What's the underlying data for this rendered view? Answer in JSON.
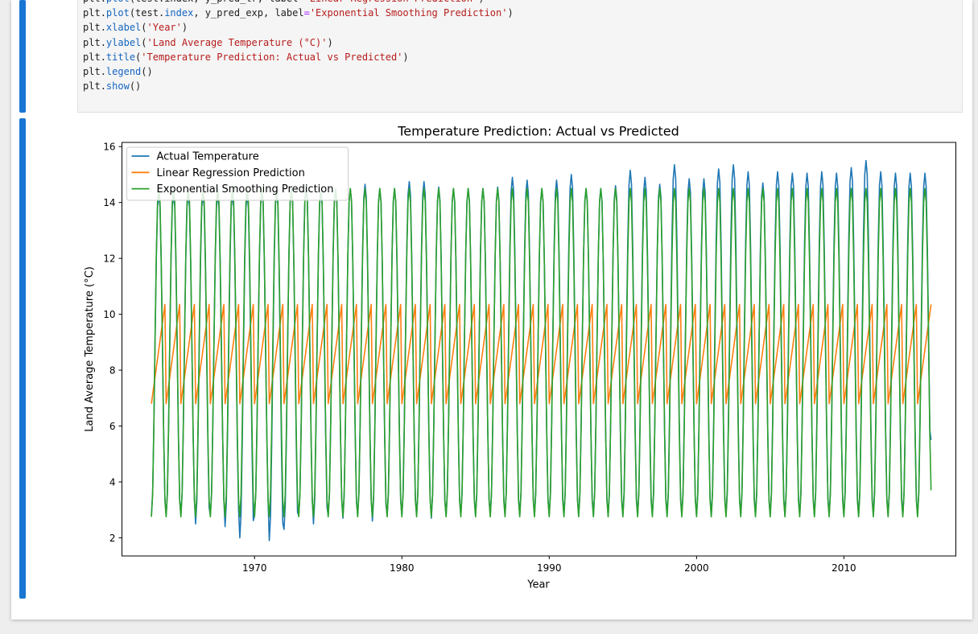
{
  "code_cell": {
    "lines": [
      [
        {
          "t": "plt",
          "c": ""
        },
        {
          "t": ".",
          "c": ""
        },
        {
          "t": "plot",
          "c": "fn"
        },
        {
          "t": "(test.index, y_pred_lr, label",
          "c": ""
        },
        {
          "t": "=",
          "c": "op"
        },
        {
          "t": "'Linear Regression Prediction'",
          "c": "str"
        },
        {
          "t": ")",
          "c": ""
        }
      ],
      [
        {
          "t": "plt",
          "c": ""
        },
        {
          "t": ".",
          "c": ""
        },
        {
          "t": "plot",
          "c": "fn"
        },
        {
          "t": "(test.",
          "c": ""
        },
        {
          "t": "index",
          "c": "fn"
        },
        {
          "t": ", y_pred_exp, label",
          "c": ""
        },
        {
          "t": "=",
          "c": "op"
        },
        {
          "t": "'Exponential Smoothing Prediction'",
          "c": "str"
        },
        {
          "t": ")",
          "c": ""
        }
      ],
      [
        {
          "t": "plt",
          "c": ""
        },
        {
          "t": ".",
          "c": ""
        },
        {
          "t": "xlabel",
          "c": "fn"
        },
        {
          "t": "(",
          "c": ""
        },
        {
          "t": "'Year'",
          "c": "str"
        },
        {
          "t": ")",
          "c": ""
        }
      ],
      [
        {
          "t": "plt",
          "c": ""
        },
        {
          "t": ".",
          "c": ""
        },
        {
          "t": "ylabel",
          "c": "fn"
        },
        {
          "t": "(",
          "c": ""
        },
        {
          "t": "'Land Average Temperature (°C)'",
          "c": "str"
        },
        {
          "t": ")",
          "c": ""
        }
      ],
      [
        {
          "t": "plt",
          "c": ""
        },
        {
          "t": ".",
          "c": ""
        },
        {
          "t": "title",
          "c": "fn"
        },
        {
          "t": "(",
          "c": ""
        },
        {
          "t": "'Temperature Prediction: Actual vs Predicted'",
          "c": "str"
        },
        {
          "t": ")",
          "c": ""
        }
      ],
      [
        {
          "t": "plt",
          "c": ""
        },
        {
          "t": ".",
          "c": ""
        },
        {
          "t": "legend",
          "c": "fn"
        },
        {
          "t": "()",
          "c": ""
        }
      ],
      [
        {
          "t": "plt",
          "c": ""
        },
        {
          "t": ".",
          "c": ""
        },
        {
          "t": "show",
          "c": "fn"
        },
        {
          "t": "()",
          "c": ""
        }
      ]
    ]
  },
  "chart_data": {
    "type": "line",
    "title": "Temperature Prediction: Actual vs Predicted",
    "xlabel": "Year",
    "ylabel": "Land Average Temperature (°C)",
    "xlim": [
      1961.0,
      2017.6
    ],
    "ylim": [
      1.35,
      16.15
    ],
    "xticks": [
      1970,
      1980,
      1990,
      2000,
      2010
    ],
    "yticks": [
      2,
      4,
      6,
      8,
      10,
      12,
      14,
      16
    ],
    "legend": "upper left",
    "grid": false,
    "x_range": [
      1963,
      2015.917
    ],
    "series": [
      {
        "name": "Actual Temperature",
        "color": "#1f77b4",
        "frequency": "monthly",
        "annual_peaks": [
          14.3,
          14.3,
          14.3,
          14.3,
          14.3,
          14.3,
          14.3,
          14.4,
          14.4,
          14.5,
          14.6,
          14.4,
          14.5,
          14.5,
          14.65,
          14.5,
          14.5,
          14.75,
          14.75,
          14.55,
          14.5,
          14.5,
          14.5,
          14.55,
          14.9,
          14.8,
          14.5,
          14.8,
          15.0,
          14.5,
          14.5,
          14.6,
          15.15,
          14.9,
          14.65,
          15.35,
          14.85,
          14.85,
          15.2,
          15.35,
          15.1,
          14.7,
          15.1,
          15.05,
          15.05,
          15.1,
          15.05,
          15.25,
          15.5,
          15.1,
          15.05,
          15.05,
          15.05
        ],
        "annual_troughs": [
          2.8,
          2.8,
          2.8,
          2.5,
          2.8,
          2.4,
          2.0,
          2.8,
          1.9,
          2.3,
          2.8,
          2.5,
          2.8,
          2.7,
          2.8,
          2.6,
          2.8,
          2.8,
          2.8,
          2.7,
          2.8,
          2.8,
          2.8,
          2.8,
          2.8,
          2.8,
          2.8,
          2.8,
          2.8,
          2.8,
          2.8,
          2.8,
          2.8,
          2.8,
          2.8,
          2.8,
          2.8,
          2.8,
          2.8,
          2.8,
          2.8,
          2.8,
          2.8,
          2.8,
          2.8,
          2.8,
          2.8,
          2.8,
          2.8,
          2.8,
          2.8,
          2.8,
          2.8
        ],
        "last_value": 5.5
      },
      {
        "name": "Linear Regression Prediction",
        "color": "#ff7f0e",
        "frequency": "monthly",
        "min": 6.8,
        "max": 10.35,
        "last_value": 10.35
      },
      {
        "name": "Exponential Smoothing Prediction",
        "color": "#2ca02c",
        "frequency": "monthly",
        "peak": 14.5,
        "trough": 2.75,
        "last_value": 3.7
      }
    ]
  }
}
